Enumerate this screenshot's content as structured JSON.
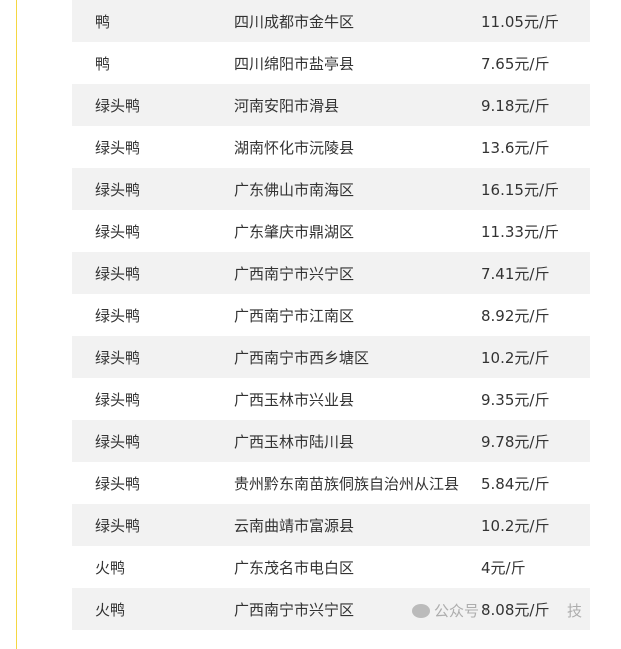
{
  "rows": [
    [
      "鸭",
      "四川成都市金牛区",
      "11.05元/斤"
    ],
    [
      "鸭",
      "四川绵阳市盐亭县",
      "7.65元/斤"
    ],
    [
      "绿头鸭",
      "河南安阳市滑县",
      "9.18元/斤"
    ],
    [
      "绿头鸭",
      "湖南怀化市沅陵县",
      "13.6元/斤"
    ],
    [
      "绿头鸭",
      "广东佛山市南海区",
      "16.15元/斤"
    ],
    [
      "绿头鸭",
      "广东肇庆市鼎湖区",
      "11.33元/斤"
    ],
    [
      "绿头鸭",
      "广西南宁市兴宁区",
      "7.41元/斤"
    ],
    [
      "绿头鸭",
      "广西南宁市江南区",
      "8.92元/斤"
    ],
    [
      "绿头鸭",
      "广西南宁市西乡塘区",
      "10.2元/斤"
    ],
    [
      "绿头鸭",
      "广西玉林市兴业县",
      "9.35元/斤"
    ],
    [
      "绿头鸭",
      "广西玉林市陆川县",
      "9.78元/斤"
    ],
    [
      "绿头鸭",
      "贵州黔东南苗族侗族自治州从江县",
      "5.84元/斤"
    ],
    [
      "绿头鸭",
      "云南曲靖市富源县",
      "10.2元/斤"
    ],
    [
      "火鸭",
      "广东茂名市电白区",
      "4元/斤"
    ],
    [
      "火鸭",
      "广西南宁市兴宁区",
      "8.08元/斤"
    ]
  ],
  "watermark": {
    "icon": "wechat-icon",
    "prefix": "公众号 ·",
    "suffix": "技"
  },
  "colors": {
    "stripe": "#f2f2f2",
    "accent_line": "#f5d742",
    "text": "#333333"
  }
}
